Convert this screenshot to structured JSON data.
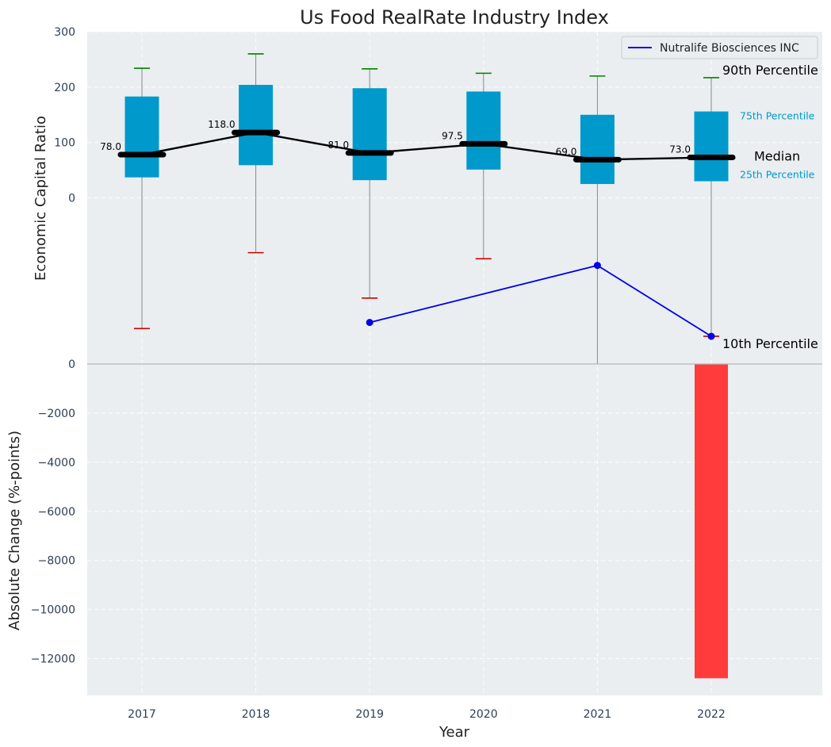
{
  "chart_data": {
    "type": "box",
    "title": "Us Food RealRate Industry Index",
    "xlabel": "Year",
    "categories": [
      "2017",
      "2018",
      "2019",
      "2020",
      "2021",
      "2022"
    ],
    "top_panel": {
      "ylabel": "Economic Capital Ratio",
      "ylim": [
        -300,
        300
      ],
      "yticks": [
        {
          "value": 0,
          "label": "0"
        },
        {
          "value": 100,
          "label": "100"
        },
        {
          "value": 200,
          "label": "200"
        },
        {
          "value": 300,
          "label": "300"
        }
      ],
      "boxes": [
        {
          "year": "2017",
          "p10": -236,
          "p25": 37,
          "median": 78,
          "p75": 183,
          "p90": 234,
          "median_label": "78.0"
        },
        {
          "year": "2018",
          "p10": -99,
          "p25": 59,
          "median": 118,
          "p75": 204,
          "p90": 260,
          "median_label": "118.0"
        },
        {
          "year": "2019",
          "p10": -181,
          "p25": 32,
          "median": 81,
          "p75": 198,
          "p90": 233,
          "median_label": "81.0"
        },
        {
          "year": "2020",
          "p10": -110,
          "p25": 51,
          "median": 97.5,
          "p75": 192,
          "p90": 225,
          "median_label": "97.5"
        },
        {
          "year": "2021",
          "p10": -300,
          "p25": 25,
          "median": 69,
          "p75": 150,
          "p90": 220,
          "median_label": "69.0"
        },
        {
          "year": "2022",
          "p10": -250,
          "p25": 30,
          "median": 73,
          "p75": 156,
          "p90": 217,
          "median_label": "73.0"
        }
      ],
      "company_series": {
        "name": "Nutralife Biosciences INC",
        "points": [
          {
            "year": "2019",
            "value": -225
          },
          {
            "year": "2021",
            "value": -122
          },
          {
            "year": "2022",
            "value": -250
          }
        ]
      },
      "percentile_labels": {
        "p90": "90th Percentile",
        "p75": "75th Percentile",
        "median": "Median",
        "p25": "25th Percentile",
        "p10": "10th Percentile"
      },
      "legend": {
        "position": "top-right"
      }
    },
    "bottom_panel": {
      "type": "bar",
      "ylabel": "Absolute Change (%-points)",
      "ylim": [
        -13500,
        0
      ],
      "yticks": [
        {
          "value": 0,
          "label": "0"
        },
        {
          "value": -2000,
          "label": "−2000"
        },
        {
          "value": -4000,
          "label": "−4000"
        },
        {
          "value": -6000,
          "label": "−6000"
        },
        {
          "value": -8000,
          "label": "−8000"
        },
        {
          "value": -10000,
          "label": "−10000"
        },
        {
          "value": -12000,
          "label": "−12000"
        }
      ],
      "bars": [
        {
          "year": "2022",
          "value": -12800
        }
      ]
    },
    "grid": true,
    "colors": {
      "background": "#eaeef0",
      "box": "#0099cc",
      "median_line": "#000000",
      "whisker": "#888888",
      "p90_cap": "#008000",
      "p10_cap": "#cc0000",
      "company": "#0000ee",
      "bar": "#ff3b3b"
    }
  }
}
